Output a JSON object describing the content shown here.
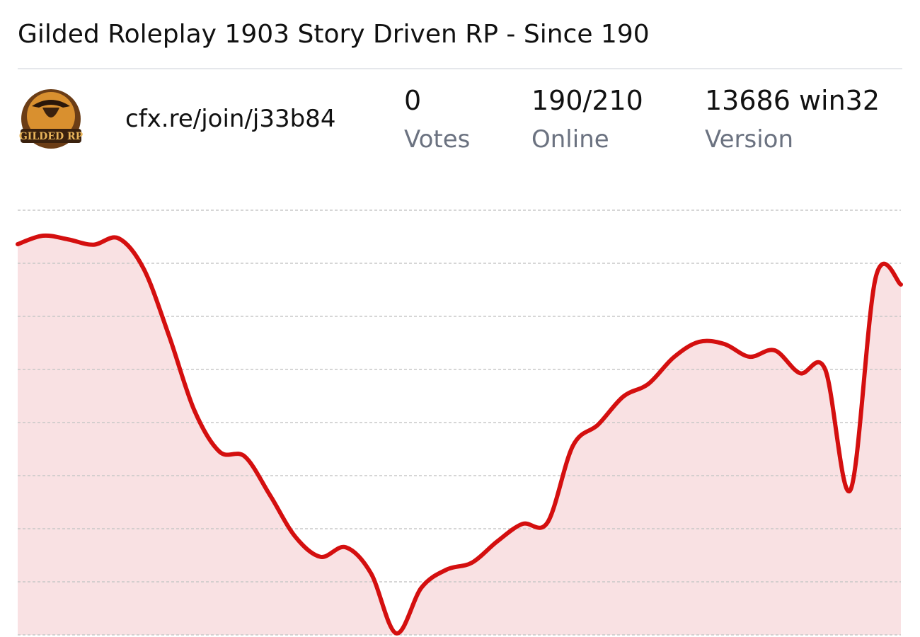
{
  "header": {
    "title": "Gilded Roleplay 1903 Story Driven RP - Since 190"
  },
  "server": {
    "logo_text": "GILDED RP",
    "address": "cfx.re/join/j33b84",
    "stats": [
      {
        "value": "0",
        "label": "Votes"
      },
      {
        "value": "190/210",
        "label": "Online"
      },
      {
        "value": "13686 win32",
        "label": "Version"
      }
    ]
  },
  "chart_data": {
    "type": "line",
    "values": [
      7.36,
      7.52,
      7.45,
      7.35,
      7.47,
      6.89,
      5.63,
      4.23,
      3.45,
      3.36,
      2.63,
      1.85,
      1.47,
      1.65,
      1.16,
      0.03,
      0.89,
      1.23,
      1.36,
      1.76,
      2.09,
      2.12,
      3.56,
      3.96,
      4.49,
      4.73,
      5.23,
      5.52,
      5.48,
      5.24,
      5.36,
      4.93,
      5.0,
      2.73,
      6.73,
      6.6
    ],
    "color": "#d40f0f",
    "fill": "#f9e1e3",
    "ylim": [
      0,
      8
    ],
    "yticks": [
      0,
      1,
      2,
      3,
      4,
      5,
      6,
      7,
      8
    ],
    "grid": true
  }
}
